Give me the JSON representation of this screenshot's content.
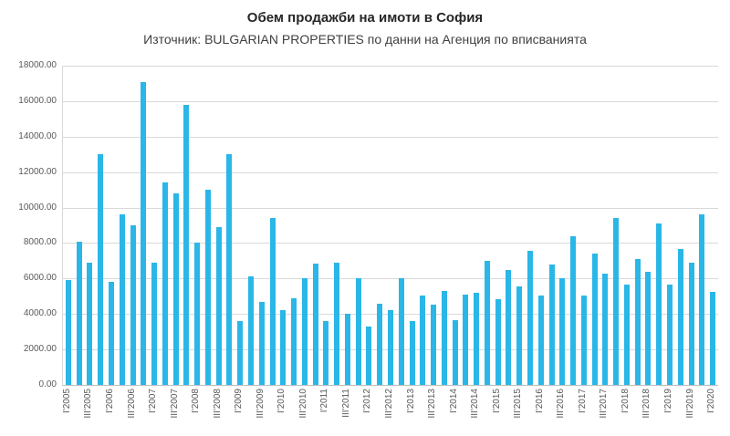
{
  "chart_data": {
    "type": "bar",
    "title": "Обем продажби на имоти в София",
    "subtitle": "Източник: BULGARIAN PROPERTIES по данни на Агенция по вписванията",
    "bar_color": "#2ab7e8",
    "grid_color": "#d9d9d9",
    "axis_color": "#bfbfbf",
    "ylim": [
      0,
      18000
    ],
    "y_tick_step": 2000,
    "y_tick_labels": [
      "18000.00",
      "16000.00",
      "14000.00",
      "12000.00",
      "10000.00",
      "8000.00",
      "6000.00",
      "4000.00",
      "2000.00",
      "0.00"
    ],
    "x_tick_labels": [
      "I'2005",
      "III'2005",
      "I'2006",
      "III'2006",
      "I'2007",
      "III'2007",
      "I'2008",
      "III'2008",
      "I'2009",
      "III'2009",
      "I'2010",
      "III'2010",
      "I'2011",
      "III'2011",
      "I'2012",
      "III'2012",
      "I'2013",
      "III'2013",
      "I'2014",
      "III'2014",
      "I'2015",
      "III'2015",
      "I'2016",
      "III'2016",
      "I'2017",
      "III'2017",
      "I'2018",
      "III'2018",
      "I'2019",
      "III'2019",
      "I'2020"
    ],
    "label_every": 2,
    "grid": true,
    "legend": "none",
    "values": [
      5900,
      8100,
      6900,
      13000,
      5800,
      9600,
      9000,
      17100,
      6900,
      11400,
      10800,
      15800,
      8000,
      11000,
      8900,
      13000,
      3600,
      6100,
      4700,
      9400,
      4200,
      4900,
      6000,
      6850,
      3600,
      6900,
      4000,
      6000,
      3300,
      4600,
      4200,
      6000,
      3600,
      5050,
      4550,
      5300,
      3650,
      5100,
      5200,
      7000,
      4850,
      6500,
      5550,
      7550,
      5050,
      6800,
      6000,
      8400,
      5050,
      7400,
      6300,
      9400,
      5650,
      7100,
      6400,
      9100,
      5650,
      7650,
      6900,
      9600,
      5250
    ]
  }
}
